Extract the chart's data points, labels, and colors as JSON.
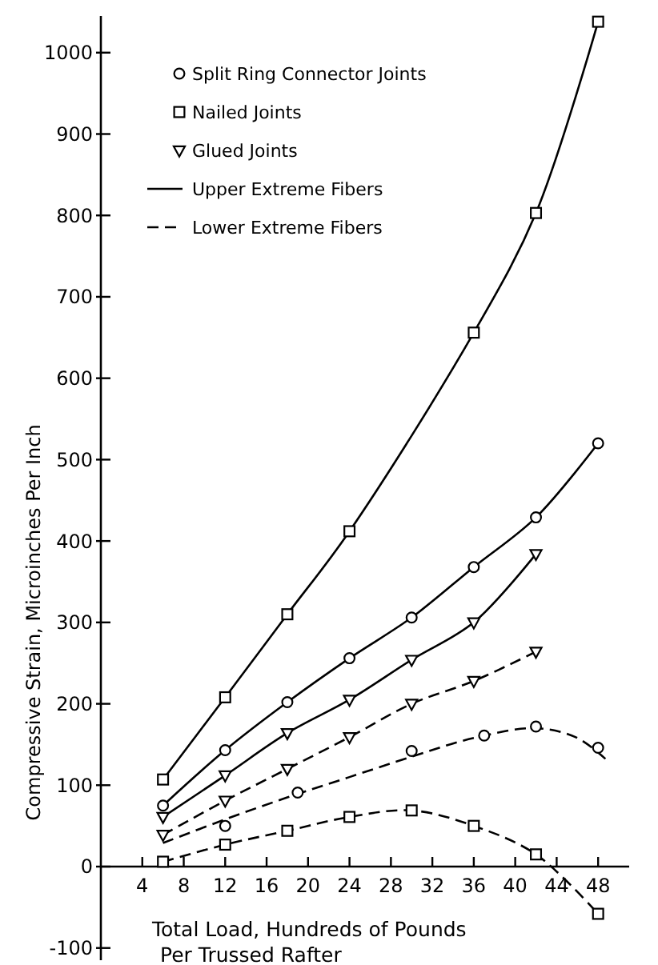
{
  "chart_data": {
    "type": "line",
    "xlabel": "Total Load, Hundreds of Pounds\nPer Trussed Rafter",
    "ylabel": "Compressive Strain, Microinches Per Inch",
    "xlim": [
      0,
      51
    ],
    "xticks": [
      4,
      8,
      12,
      16,
      20,
      24,
      28,
      32,
      36,
      40,
      44,
      48
    ],
    "ylim": [
      -115,
      1045
    ],
    "yticks": [
      -100,
      0,
      100,
      200,
      300,
      400,
      500,
      600,
      700,
      800,
      900,
      1000
    ],
    "grid": false,
    "legend": "top left",
    "series": [
      {
        "type": "scatter",
        "name": "Split Ring Connector Joints",
        "color": "#000000",
        "marker": "circle",
        "x": [
          6,
          12,
          18,
          24,
          30,
          36,
          42,
          48,
          12,
          19,
          30,
          37,
          42,
          48
        ],
        "values": [
          75,
          143,
          202,
          256,
          306,
          368,
          429,
          520,
          50,
          91,
          142,
          161,
          172,
          146
        ]
      },
      {
        "type": "scatter",
        "name": "Nailed Joints",
        "color": "#000000",
        "marker": "square",
        "x": [
          6,
          12,
          18,
          24,
          36,
          42,
          48,
          6,
          12,
          18,
          24,
          30,
          36,
          42,
          48
        ],
        "values": [
          107,
          208,
          310,
          412,
          656,
          803,
          1038,
          6,
          27,
          44,
          61,
          69,
          50,
          15,
          -58
        ]
      },
      {
        "type": "scatter",
        "name": "Glued Joints",
        "color": "#000000",
        "marker": "triangle",
        "x": [
          6,
          12,
          18,
          24,
          30,
          36,
          42,
          6,
          12,
          18,
          24,
          30,
          36,
          42
        ],
        "values": [
          61,
          112,
          164,
          205,
          254,
          300,
          384,
          39,
          81,
          120,
          159,
          200,
          228,
          264
        ]
      },
      {
        "type": "line",
        "name": "Upper Extreme Fibers",
        "color": "#000000",
        "line_style": "solid",
        "x": [
          6,
          12,
          18,
          24,
          36,
          42,
          48
        ],
        "values": [
          107,
          208,
          310,
          412,
          656,
          803,
          1038
        ]
      },
      {
        "type": "line",
        "name": "Lower Extreme Fibers",
        "color": "#000000",
        "line_style": "dashed",
        "x": [
          6,
          12,
          18,
          24,
          30,
          36,
          42,
          46,
          49
        ],
        "values": [
          29,
          58,
          85,
          110,
          135,
          158,
          170,
          158,
          129
        ]
      },
      {
        "type": "line",
        "color": "#000000",
        "line_style": "solid",
        "x": [
          6,
          12,
          18,
          24,
          30,
          36,
          42,
          48
        ],
        "values": [
          75,
          143,
          202,
          256,
          306,
          368,
          429,
          520
        ]
      },
      {
        "type": "line",
        "color": "#000000",
        "line_style": "solid",
        "x": [
          6,
          12,
          18,
          24,
          30,
          36,
          42
        ],
        "values": [
          61,
          112,
          164,
          205,
          254,
          300,
          384
        ]
      },
      {
        "type": "line",
        "color": "#000000",
        "line_style": "dashed",
        "x": [
          6,
          12,
          18,
          24,
          30,
          36,
          42
        ],
        "values": [
          39,
          81,
          120,
          159,
          200,
          228,
          264
        ]
      },
      {
        "type": "line",
        "color": "#000000",
        "line_style": "dashed",
        "x": [
          6,
          12,
          18,
          24,
          30,
          36,
          42,
          48
        ],
        "values": [
          6,
          27,
          44,
          61,
          69,
          50,
          15,
          -58
        ]
      }
    ]
  }
}
